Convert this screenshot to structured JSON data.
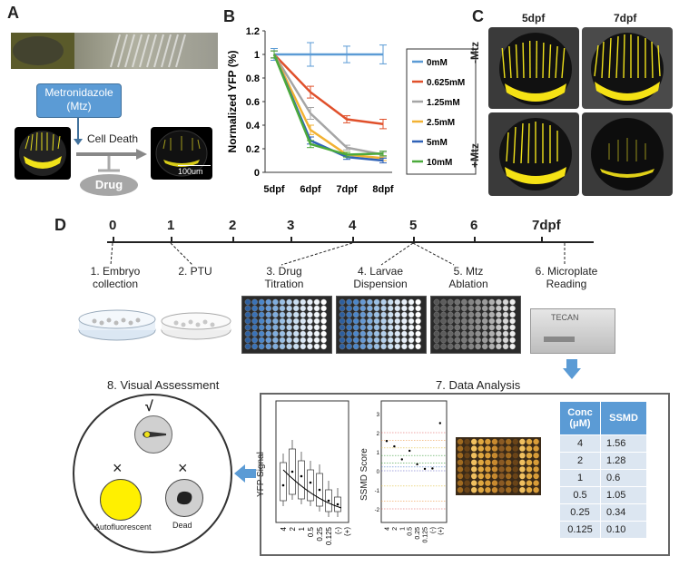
{
  "panels": {
    "a": "A",
    "b": "B",
    "c": "C",
    "d": "D"
  },
  "panel_a": {
    "mtz_label_line1": "Metronidazole",
    "mtz_label_line2": "(Mtz)",
    "cell_death": "Cell Death",
    "drug": "Drug",
    "scale_bar": "100um",
    "colors": {
      "mtz_box": "#5b9bd5",
      "drug": "#a6a6a6",
      "yfp": "#f0e21a"
    }
  },
  "panel_c": {
    "col1": "5dpf",
    "col2": "7dpf",
    "row1": "-Mtz",
    "row2": "+Mtz"
  },
  "chart_data": {
    "type": "line",
    "ylabel": "Normalized YFP (%)",
    "xlabel": "",
    "categories": [
      "5dpf",
      "6dpf",
      "7dpf",
      "8dpf"
    ],
    "ylim": [
      0,
      1.2
    ],
    "yticks": [
      "0",
      "0.2",
      "0.4",
      "0.6",
      "0.8",
      "1",
      "1.2"
    ],
    "legend_position": "right",
    "series": [
      {
        "name": "0mM",
        "color": "#5b9bd5",
        "values": [
          1.0,
          1.0,
          1.0,
          1.0
        ],
        "err": [
          0.05,
          0.1,
          0.07,
          0.08
        ]
      },
      {
        "name": "0.625mM",
        "color": "#e0502b",
        "values": [
          1.0,
          0.68,
          0.45,
          0.41
        ],
        "err": [
          0.03,
          0.05,
          0.03,
          0.04
        ]
      },
      {
        "name": "1.25mM",
        "color": "#a5a5a5",
        "values": [
          1.0,
          0.5,
          0.21,
          0.15
        ],
        "err": [
          0.03,
          0.05,
          0.02,
          0.02
        ]
      },
      {
        "name": "2.5mM",
        "color": "#f2b233",
        "values": [
          1.0,
          0.36,
          0.15,
          0.12
        ],
        "err": [
          0.03,
          0.04,
          0.02,
          0.02
        ]
      },
      {
        "name": "5mM",
        "color": "#2f62b7",
        "values": [
          1.0,
          0.27,
          0.13,
          0.1
        ],
        "err": [
          0.03,
          0.03,
          0.02,
          0.02
        ]
      },
      {
        "name": "10mM",
        "color": "#4caa3c",
        "values": [
          1.0,
          0.24,
          0.15,
          0.16
        ],
        "err": [
          0.03,
          0.03,
          0.02,
          0.02
        ]
      }
    ]
  },
  "panel_d": {
    "timeline_ticks": [
      "0",
      "1",
      "2",
      "3",
      "4",
      "5",
      "6",
      "7dpf"
    ],
    "steps": [
      {
        "line1": "1. Embryo",
        "line2": "collection"
      },
      {
        "line1": "2. PTU",
        "line2": ""
      },
      {
        "line1": "3. Drug",
        "line2": "Titration"
      },
      {
        "line1": "4. Larvae",
        "line2": "Dispension"
      },
      {
        "line1": "5. Mtz",
        "line2": "Ablation"
      },
      {
        "line1": "6. Microplate",
        "line2": "Reading"
      }
    ],
    "tecan": "TECAN",
    "visual_assessment": "8. Visual Assessment",
    "data_analysis": "7. Data Analysis",
    "check_mark": "√",
    "cross_mark": "×",
    "autofluorescent": "Autofluorescent",
    "dead": "Dead",
    "boxplot_ylabel": "YFP Signal",
    "ssmd_ylabel": "SSMD Score",
    "box_x_labels": [
      "4",
      "2",
      "1",
      "0.5",
      "0.25",
      "0.125",
      "(-)",
      "(+)"
    ],
    "ssmd_x_labels": [
      "4",
      "2",
      "1",
      "0.5",
      "0.25",
      "0.125",
      "(-)",
      "(+)"
    ],
    "ssmd_yticks": [
      "3",
      "2",
      "1",
      "0",
      "-1",
      "-2"
    ],
    "table": {
      "headers": [
        "Conc\n(μM)",
        "SSMD"
      ],
      "header1": "Conc",
      "header1b": "(μM)",
      "header2": "SSMD",
      "rows": [
        [
          "4",
          "1.56"
        ],
        [
          "2",
          "1.28"
        ],
        [
          "1",
          "0.6"
        ],
        [
          "0.5",
          "1.05"
        ],
        [
          "0.25",
          "0.34"
        ],
        [
          "0.125",
          "0.10"
        ]
      ],
      "header_color": "#5b9bd5",
      "row_color": "#dce6f1"
    }
  }
}
